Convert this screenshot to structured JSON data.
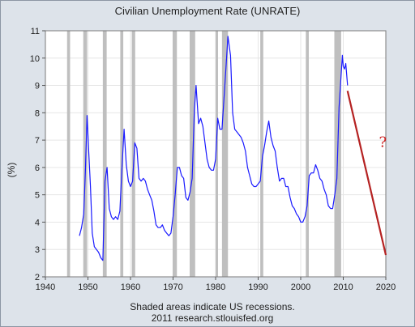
{
  "chart_data": {
    "type": "line",
    "title": "Civilian Unemployment Rate (UNRATE)",
    "ylabel": "(%)",
    "xlabel": "",
    "xlim": [
      1940,
      2020
    ],
    "ylim": [
      2,
      11
    ],
    "x_ticks": [
      1940,
      1950,
      1960,
      1970,
      1980,
      1990,
      2000,
      2010,
      2020
    ],
    "y_ticks": [
      2,
      3,
      4,
      5,
      6,
      7,
      8,
      9,
      10,
      11
    ],
    "grid": true,
    "footnote_1": "Shaded areas indicate US recessions.",
    "footnote_2": "2011 research.stlouisfed.org",
    "annotation": "?",
    "colors": {
      "series": "#1a1aff",
      "recession": "#bfbfbf",
      "projection": "#b52222",
      "annotation": "#cc2222",
      "plot_bg": "#ffffff",
      "frame_bg": "#dde3ea"
    },
    "recessions": [
      [
        1945.1,
        1945.8
      ],
      [
        1948.9,
        1949.8
      ],
      [
        1953.5,
        1954.4
      ],
      [
        1957.6,
        1958.3
      ],
      [
        1960.3,
        1961.1
      ],
      [
        1969.9,
        1970.9
      ],
      [
        1973.9,
        1975.2
      ],
      [
        1980.0,
        1980.5
      ],
      [
        1981.5,
        1982.9
      ],
      [
        1990.5,
        1991.2
      ],
      [
        2001.2,
        2001.9
      ],
      [
        2007.9,
        2009.5
      ]
    ],
    "series": [
      {
        "x": [
          1948.0,
          1948.5,
          1949.0,
          1949.4,
          1949.8,
          1950.2,
          1950.6,
          1951.0,
          1951.5,
          1952.0,
          1952.5,
          1953.0,
          1953.5,
          1954.0,
          1954.5,
          1955.0,
          1955.5,
          1956.0,
          1956.5,
          1957.0,
          1957.5,
          1958.0,
          1958.5,
          1959.0,
          1959.5,
          1960.0,
          1960.5,
          1961.0,
          1961.5,
          1962.0,
          1962.5,
          1963.0,
          1963.5,
          1964.0,
          1964.5,
          1965.0,
          1965.5,
          1966.0,
          1966.5,
          1967.0,
          1967.5,
          1968.0,
          1968.5,
          1969.0,
          1969.5,
          1970.0,
          1970.5,
          1971.0,
          1971.5,
          1972.0,
          1972.5,
          1973.0,
          1973.5,
          1974.0,
          1974.5,
          1975.0,
          1975.4,
          1976.0,
          1976.5,
          1977.0,
          1977.5,
          1978.0,
          1978.5,
          1979.0,
          1979.5,
          1980.0,
          1980.5,
          1981.0,
          1981.5,
          1982.0,
          1982.5,
          1982.9,
          1983.5,
          1984.0,
          1984.5,
          1985.0,
          1985.5,
          1986.0,
          1986.5,
          1987.0,
          1987.5,
          1988.0,
          1988.5,
          1989.0,
          1989.5,
          1990.0,
          1990.5,
          1991.0,
          1991.5,
          1992.0,
          1992.5,
          1993.0,
          1993.5,
          1994.0,
          1994.5,
          1995.0,
          1995.5,
          1996.0,
          1996.5,
          1997.0,
          1997.5,
          1998.0,
          1998.5,
          1999.0,
          1999.5,
          2000.0,
          2000.5,
          2001.0,
          2001.5,
          2002.0,
          2002.5,
          2003.0,
          2003.5,
          2004.0,
          2004.5,
          2005.0,
          2005.5,
          2006.0,
          2006.5,
          2007.0,
          2007.5,
          2008.0,
          2008.5,
          2009.0,
          2009.5,
          2009.8,
          2010.0,
          2010.3,
          2010.6,
          2011.0
        ],
        "y": [
          3.5,
          3.8,
          4.3,
          5.9,
          7.9,
          6.5,
          5.3,
          3.6,
          3.1,
          3.0,
          2.9,
          2.7,
          2.6,
          5.5,
          6.0,
          4.5,
          4.2,
          4.1,
          4.2,
          4.1,
          4.4,
          6.0,
          7.4,
          6.1,
          5.5,
          5.3,
          5.5,
          6.9,
          6.7,
          5.6,
          5.5,
          5.6,
          5.5,
          5.2,
          5.0,
          4.8,
          4.4,
          3.9,
          3.8,
          3.8,
          3.9,
          3.7,
          3.6,
          3.5,
          3.6,
          4.2,
          5.0,
          6.0,
          6.0,
          5.7,
          5.6,
          4.9,
          4.8,
          5.1,
          5.6,
          8.1,
          9.0,
          7.6,
          7.8,
          7.5,
          6.9,
          6.3,
          6.0,
          5.9,
          5.9,
          6.3,
          7.8,
          7.4,
          7.4,
          8.6,
          9.8,
          10.8,
          10.1,
          8.0,
          7.4,
          7.3,
          7.2,
          7.1,
          6.9,
          6.6,
          6.0,
          5.7,
          5.4,
          5.3,
          5.3,
          5.4,
          5.5,
          6.4,
          6.8,
          7.3,
          7.7,
          7.1,
          6.8,
          6.6,
          6.0,
          5.5,
          5.6,
          5.6,
          5.3,
          5.3,
          4.9,
          4.6,
          4.5,
          4.3,
          4.2,
          4.0,
          4.0,
          4.2,
          4.6,
          5.7,
          5.8,
          5.8,
          6.1,
          5.9,
          5.6,
          5.5,
          5.2,
          5.0,
          4.6,
          4.5,
          4.5,
          5.0,
          5.6,
          8.2,
          9.4,
          10.1,
          9.7,
          9.6,
          9.8,
          9.0
        ]
      }
    ],
    "projection": {
      "x": [
        2011.0,
        2020.0
      ],
      "y": [
        8.8,
        2.8
      ]
    },
    "annotation_pos": {
      "x": 2019.3,
      "y": 6.75
    }
  }
}
